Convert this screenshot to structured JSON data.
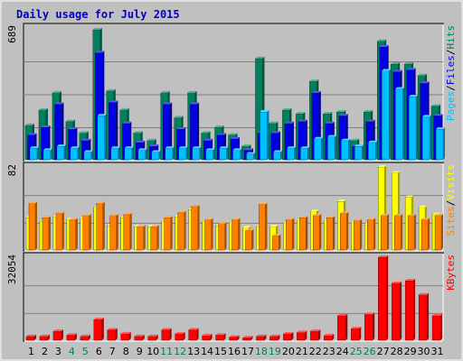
{
  "colors": {
    "page_bg": "#c0c0c0",
    "plot_bg": "#c0c0c0",
    "frame": "#808080",
    "title": "#0000cc",
    "weekend_day": "#00805c",
    "weekday": "#000000",
    "hits": "#00805c",
    "files": "#0000e6",
    "pages": "#00c0ff",
    "visits": "#ffff00",
    "sites": "#ff8000",
    "kbytes": "#ff0000",
    "grid": "#808080"
  },
  "chart_data": {
    "type": "bar",
    "title": "Daily usage for July 2015",
    "categories": [
      "1",
      "2",
      "3",
      "4",
      "5",
      "6",
      "7",
      "8",
      "9",
      "10",
      "11",
      "12",
      "13",
      "14",
      "15",
      "16",
      "17",
      "18",
      "19",
      "20",
      "21",
      "22",
      "23",
      "24",
      "25",
      "26",
      "27",
      "28",
      "29",
      "30",
      "31"
    ],
    "weekend_days": [
      4,
      5,
      11,
      12,
      18,
      19,
      25,
      26
    ],
    "panels": [
      {
        "name": "hits-files-pages",
        "max_label": "689",
        "legend": [
          "Pages",
          "/",
          "Files",
          "/",
          "Hits"
        ],
        "ylim": [
          0,
          689
        ],
        "series": [
          {
            "name": "Hits",
            "values": [
              180,
              260,
              350,
              200,
              140,
              680,
              360,
              260,
              140,
              100,
              350,
              220,
              350,
              140,
              170,
              130,
              70,
              530,
              190,
              260,
              240,
              410,
              240,
              250,
              100,
              250,
              620,
              500,
              500,
              440,
              280
            ]
          },
          {
            "name": "Files",
            "values": [
              130,
              170,
              290,
              160,
              100,
              560,
              300,
              190,
              90,
              70,
              290,
              160,
              290,
              100,
              130,
              110,
              50,
              140,
              140,
              190,
              200,
              350,
              190,
              230,
              70,
              200,
              590,
              460,
              470,
              400,
              230
            ]
          },
          {
            "name": "Pages",
            "values": [
              60,
              50,
              70,
              60,
              40,
              230,
              60,
              60,
              50,
              40,
              60,
              60,
              60,
              50,
              60,
              50,
              30,
              250,
              40,
              60,
              60,
              110,
              120,
              100,
              70,
              90,
              465,
              370,
              330,
              225,
              160
            ]
          }
        ]
      },
      {
        "name": "visits-sites",
        "max_label": "82",
        "legend": [
          "Sites",
          "/",
          "Visits"
        ],
        "ylim": [
          0,
          82
        ],
        "series": [
          {
            "name": "Visits",
            "values": [
              32,
              28,
              33,
              30,
              31,
              42,
              24,
              32,
              23,
              23,
              28,
              33,
              40,
              28,
              24,
              27,
              22,
              23,
              23,
              26,
              29,
              38,
              29,
              48,
              27,
              25,
              82,
              76,
              52,
              42,
              35
            ]
          },
          {
            "name": "Sites",
            "values": [
              46,
              32,
              36,
              30,
              34,
              46,
              34,
              35,
              23,
              23,
              32,
              37,
              43,
              30,
              26,
              30,
              19,
              45,
              14,
              30,
              32,
              34,
              32,
              36,
              29,
              30,
              34,
              34,
              34,
              30,
              34
            ]
          }
        ]
      },
      {
        "name": "kbytes",
        "max_label": "32054",
        "legend": [
          "KBytes"
        ],
        "ylim": [
          0,
          32054
        ],
        "series": [
          {
            "name": "KBytes",
            "values": [
              1500,
              1500,
              3500,
              2000,
              1500,
              8000,
              4000,
              2500,
              1500,
              1500,
              4000,
              2500,
              4000,
              1800,
              2000,
              1200,
              1000,
              1500,
              1500,
              2500,
              3000,
              3500,
              1800,
              9500,
              4500,
              10000,
              32054,
              22000,
              23000,
              17500,
              9500
            ]
          }
        ]
      }
    ]
  }
}
